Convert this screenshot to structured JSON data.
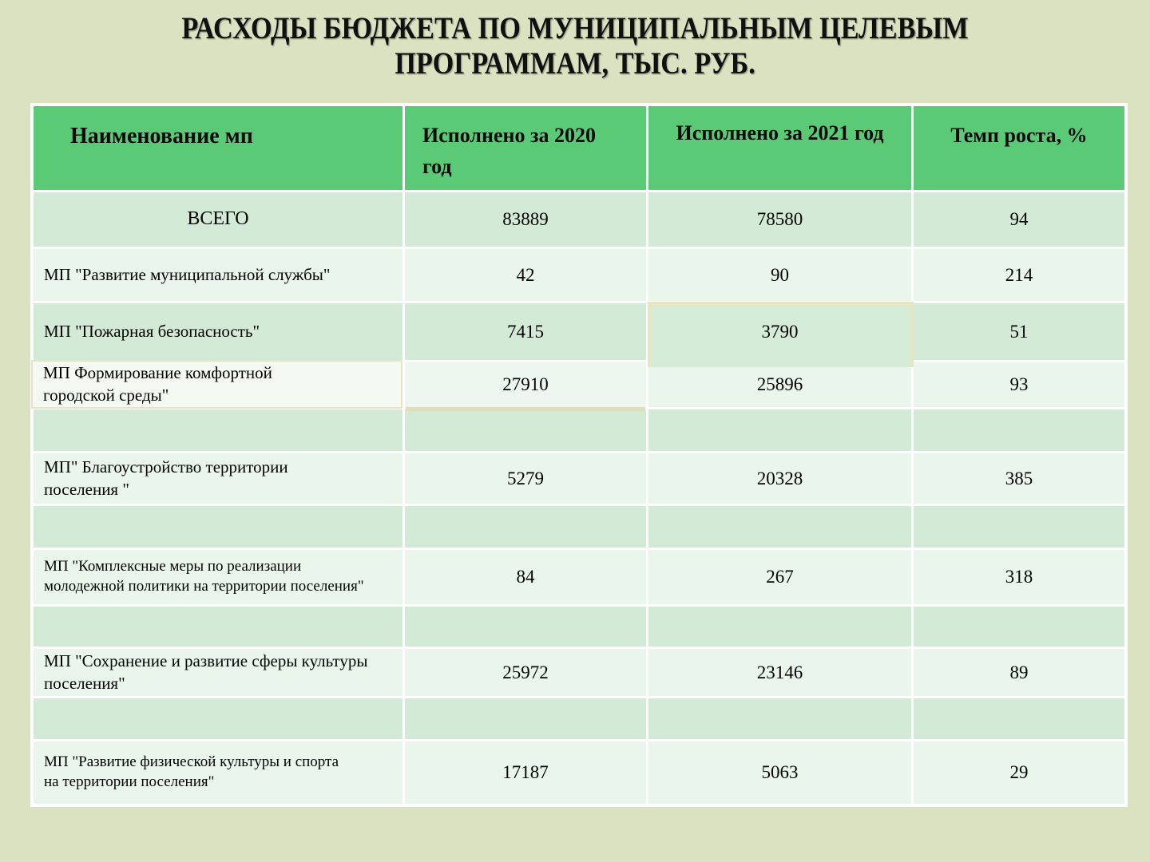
{
  "title_lines": [
    "РАСХОДЫ БЮДЖЕТА ПО МУНИЦИПАЛЬНЫМ ЦЕЛЕВЫМ",
    "ПРОГРАММАМ, ТЫС. РУБ."
  ],
  "colors": {
    "slide_background": "#dbe2c2",
    "header_green": "#5bca76",
    "row_dark_mint": "#d3ebd6",
    "row_light_mint": "#eaf6ec",
    "grid_lines": "#ffffff",
    "overlay_border_beige": "#e4e4c6",
    "text": "#000000"
  },
  "table": {
    "headers": [
      "Наименование мп",
      "Исполнено за 2020\nгод",
      "Исполнено за 2021 год",
      "Темп роста, %"
    ],
    "rows": [
      {
        "name": "ВСЕГО",
        "v2020": "83889",
        "v2021": "78580",
        "growth": "94",
        "shade": "dark",
        "empty": false
      },
      {
        "name": "МП \"Развитие муниципальной службы\"",
        "v2020": "42",
        "v2021": "90",
        "growth": "214",
        "shade": "light",
        "empty": false
      },
      {
        "name": "МП \"Пожарная безопасность\"",
        "v2020": "7415",
        "v2021": "3790",
        "growth": "51",
        "shade": "dark",
        "empty": false
      },
      {
        "name": "МП  Формирование комфортной\nгородской среды\"",
        "v2020": "27910",
        "v2021": "25896",
        "growth": "93",
        "shade": "light",
        "empty": false
      },
      {
        "name": "",
        "v2020": "",
        "v2021": "",
        "growth": "",
        "shade": "dark",
        "empty": true
      },
      {
        "name": "МП\" Благоустройство территории\n поселения \"",
        "v2020": "5279",
        "v2021": "20328",
        "growth": "385",
        "shade": "light",
        "empty": false
      },
      {
        "name": "",
        "v2020": "",
        "v2021": "",
        "growth": "",
        "shade": "dark",
        "empty": true
      },
      {
        "name": "МП \"Комплексные меры по реализации\nмолодежной политики на территории поселения\"",
        "v2020": "84",
        "v2021": "267",
        "growth": "318",
        "shade": "light",
        "empty": false
      },
      {
        "name": "",
        "v2020": "",
        "v2021": "",
        "growth": "",
        "shade": "dark",
        "empty": true
      },
      {
        "name": "МП \"Сохранение и развитие сферы культуры\n поселения\"",
        "v2020": "25972",
        "v2021": "23146",
        "growth": "89",
        "shade": "light",
        "empty": false
      },
      {
        "name": "",
        "v2020": "",
        "v2021": "",
        "growth": "",
        "shade": "dark",
        "empty": true
      },
      {
        "name": "МП \"Развитие физической культуры и спорта\nна территории поселения\"",
        "v2020": "17187",
        "v2021": "5063",
        "growth": "29",
        "shade": "light",
        "empty": false
      }
    ]
  }
}
